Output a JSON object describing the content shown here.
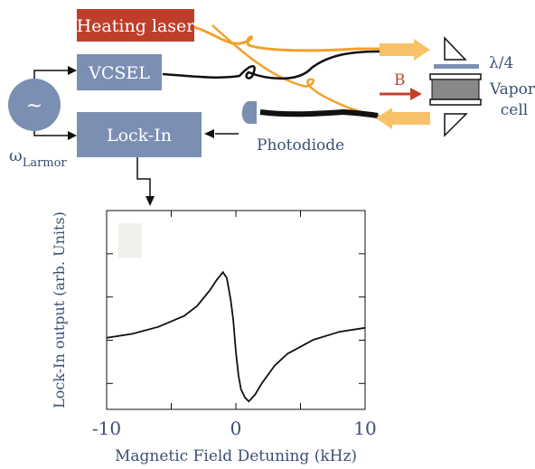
{
  "diagram": {
    "heating_laser": "Heating laser",
    "vcsel": "VCSEL",
    "lockin": "Lock-In",
    "oscillator_symbol": "~",
    "omega": "ω",
    "omega_sub": "Larmor",
    "photodiode": "Photodiode",
    "b_field": "B",
    "waveplate": "λ/4",
    "vapor_line1": "Vapor",
    "vapor_line2": "cell",
    "colors": {
      "box_blue": "#7b8fb3",
      "laser_red": "#bd3f2a",
      "fiber_orange": "#f2a12b",
      "beam": "#f8c26a",
      "b_arrow": "#c0432c",
      "text_blue": "#3c4f74"
    }
  },
  "chart_data": {
    "type": "line",
    "title": "",
    "xlabel": "Magnetic Field Detuning (kHz)",
    "ylabel": "Lock-In output (arb. Units)",
    "xlim": [
      -10,
      10
    ],
    "ylim": [
      -1,
      1
    ],
    "xticks": [
      "-10",
      "0",
      "10"
    ],
    "y_tick_labels_shown": false,
    "grid": false,
    "series": [
      {
        "x": [
          -10,
          -8,
          -6,
          -4,
          -3,
          -2,
          -1.5,
          -1,
          -0.7,
          -0.4,
          -0.2,
          0,
          0.2,
          0.4,
          0.7,
          1,
          1.5,
          2,
          3,
          4,
          6,
          8,
          10
        ],
        "y": [
          -0.28,
          -0.24,
          -0.17,
          -0.06,
          0.04,
          0.2,
          0.3,
          0.38,
          0.32,
          0.1,
          -0.1,
          -0.42,
          -0.66,
          -0.8,
          -0.88,
          -0.92,
          -0.85,
          -0.74,
          -0.56,
          -0.44,
          -0.3,
          -0.22,
          -0.18
        ]
      }
    ]
  }
}
